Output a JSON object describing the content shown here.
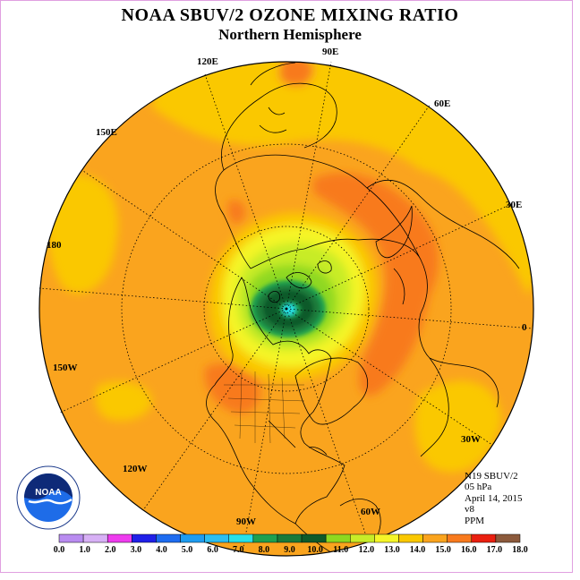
{
  "title": "NOAA SBUV/2 OZONE MIXING RATIO",
  "subtitle": "Northern Hemisphere",
  "longitudes": {
    "e90": "90E",
    "e60": "60E",
    "e30": "30E",
    "zero": "0",
    "w30": "30W",
    "w60": "60W",
    "w90": "90W",
    "w120": "120W",
    "w150": "150W",
    "d180": "180",
    "e150": "150E",
    "e120": "120E"
  },
  "info": {
    "instrument": "N19 SBUV/2",
    "level": "05 hPa",
    "date": "April 14, 2015",
    "version": "v8",
    "units": "PPM"
  },
  "legend": {
    "ticks": [
      "0.0",
      "1.0",
      "2.0",
      "3.0",
      "4.0",
      "5.0",
      "6.0",
      "7.0",
      "8.0",
      "9.0",
      "10.0",
      "11.0",
      "12.0",
      "13.0",
      "14.0",
      "15.0",
      "16.0",
      "17.0",
      "18.0"
    ],
    "colors": [
      "#b98cf0",
      "#d7b0f5",
      "#ee3cee",
      "#2020e8",
      "#1e6cf0",
      "#1e9cf0",
      "#2cbef0",
      "#28e0e8",
      "#1ea050",
      "#1a7a3a",
      "#0e5a2a",
      "#8ed820",
      "#c8ec28",
      "#f5f528",
      "#fac800",
      "#faa41e",
      "#f87a1e",
      "#ea2010",
      "#8c5a3c"
    ]
  },
  "logo": {
    "text": "NOAA"
  }
}
